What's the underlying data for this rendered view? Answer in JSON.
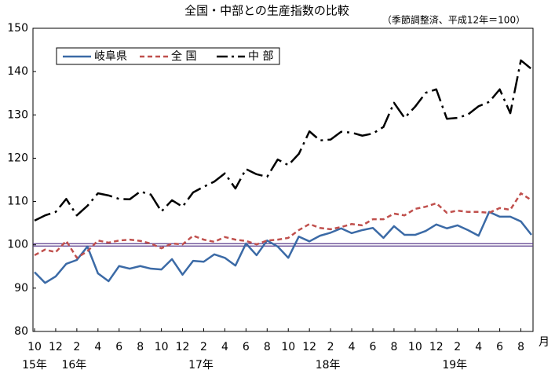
{
  "chart_data": {
    "type": "line",
    "title": "全国・中部との生産指数の比較",
    "subtitle": "（季節調整済、平成12年＝100）",
    "categories": [
      "10",
      null,
      "12",
      null,
      "2",
      null,
      "4",
      null,
      "6",
      null,
      "8",
      null,
      "10",
      null,
      "12",
      null,
      "2",
      null,
      "4",
      null,
      "6",
      null,
      "8",
      null,
      "10",
      null,
      "12",
      null,
      "2",
      null,
      "4",
      null,
      "6",
      null,
      "8",
      null,
      "10",
      null,
      "12",
      null,
      "2",
      null,
      "4",
      null,
      "6",
      null,
      "8",
      null
    ],
    "year_labels": [
      "15年",
      null,
      null,
      "16年",
      null,
      null,
      null,
      null,
      null,
      null,
      null,
      null,
      null,
      null,
      null,
      "17年",
      null,
      null,
      null,
      null,
      null,
      null,
      null,
      null,
      null,
      null,
      null,
      "18年",
      null,
      null,
      null,
      null,
      null,
      null,
      null,
      null,
      null,
      null,
      null,
      "19年",
      null,
      null,
      null,
      null,
      null,
      null,
      null,
      null
    ],
    "x_unit": "月",
    "series": [
      {
        "name": "岐阜県",
        "color": "#3b6aa6",
        "style": "solid",
        "values": [
          93.7,
          91.2,
          92.7,
          95.6,
          96.5,
          99.6,
          93.4,
          91.6,
          95.1,
          94.5,
          95.1,
          94.5,
          94.3,
          96.7,
          93.1,
          96.3,
          96.1,
          97.8,
          97.0,
          95.2,
          100.3,
          97.6,
          101.0,
          99.6,
          97.0,
          101.9,
          100.8,
          102.1,
          102.8,
          103.8,
          102.7,
          103.4,
          103.9,
          101.6,
          104.3,
          102.3,
          102.3,
          103.2,
          104.7,
          103.8,
          104.5,
          103.4,
          102.1,
          107.6,
          106.5,
          106.5,
          105.4,
          102.3
        ]
      },
      {
        "name": "全 国",
        "color": "#c0504d",
        "style": "dashed",
        "values": [
          97.6,
          98.9,
          98.3,
          100.9,
          97.0,
          98.5,
          101.0,
          100.5,
          101.0,
          101.2,
          100.9,
          100.3,
          99.2,
          100.3,
          100.1,
          102.1,
          101.2,
          100.7,
          101.8,
          101.2,
          100.9,
          100.1,
          101.0,
          101.2,
          101.6,
          103.4,
          104.8,
          103.9,
          103.6,
          104.1,
          104.8,
          104.5,
          105.9,
          105.9,
          107.2,
          106.8,
          108.3,
          108.8,
          109.6,
          107.4,
          107.9,
          107.6,
          107.6,
          107.4,
          108.5,
          108.1,
          111.9,
          110.3
        ]
      },
      {
        "name": "中 部",
        "color": "#000000",
        "style": "dashdot",
        "values": [
          105.6,
          106.8,
          107.6,
          110.6,
          106.8,
          109.0,
          111.9,
          111.4,
          110.6,
          110.5,
          112.3,
          111.6,
          107.7,
          110.3,
          108.8,
          112.1,
          113.4,
          114.6,
          116.5,
          113.0,
          117.5,
          116.3,
          115.7,
          119.7,
          118.4,
          121.0,
          126.2,
          124.1,
          124.3,
          126.1,
          125.9,
          125.2,
          125.7,
          127.2,
          132.8,
          129.3,
          131.9,
          135.1,
          135.9,
          129.1,
          129.3,
          130.1,
          132.0,
          133.0,
          135.9,
          130.4,
          142.6,
          140.6
        ]
      }
    ],
    "ylim": [
      80,
      150
    ],
    "yticks": [
      80,
      90,
      100,
      110,
      120,
      130,
      140,
      150
    ],
    "reference_line": 100,
    "grid": false,
    "legend": "upper left"
  }
}
